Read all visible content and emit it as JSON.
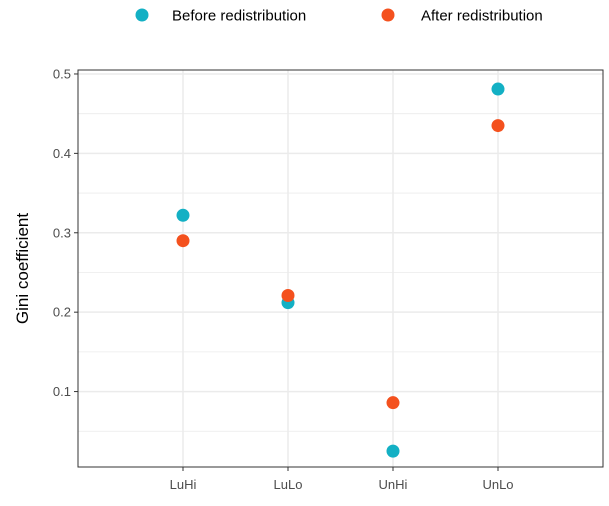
{
  "chart_data": {
    "type": "scatter",
    "categories": [
      "LuHi",
      "LuLo",
      "UnHi",
      "UnLo"
    ],
    "series": [
      {
        "name": "Before redistribution",
        "color": "#13B0C4",
        "values": [
          0.322,
          0.212,
          0.025,
          0.481
        ]
      },
      {
        "name": "After redistribution",
        "color": "#F4511E",
        "values": [
          0.29,
          0.221,
          0.086,
          0.435
        ]
      }
    ],
    "title": "",
    "xlabel": "",
    "ylabel": "Gini coefficient",
    "ylim": [
      0.005,
      0.505
    ],
    "yticks": [
      0.1,
      0.2,
      0.3,
      0.4,
      0.5
    ],
    "ytick_labels": [
      "0.1",
      "0.2",
      "0.3",
      "0.4",
      "0.5"
    ],
    "grid": true,
    "legend_position": "top"
  }
}
